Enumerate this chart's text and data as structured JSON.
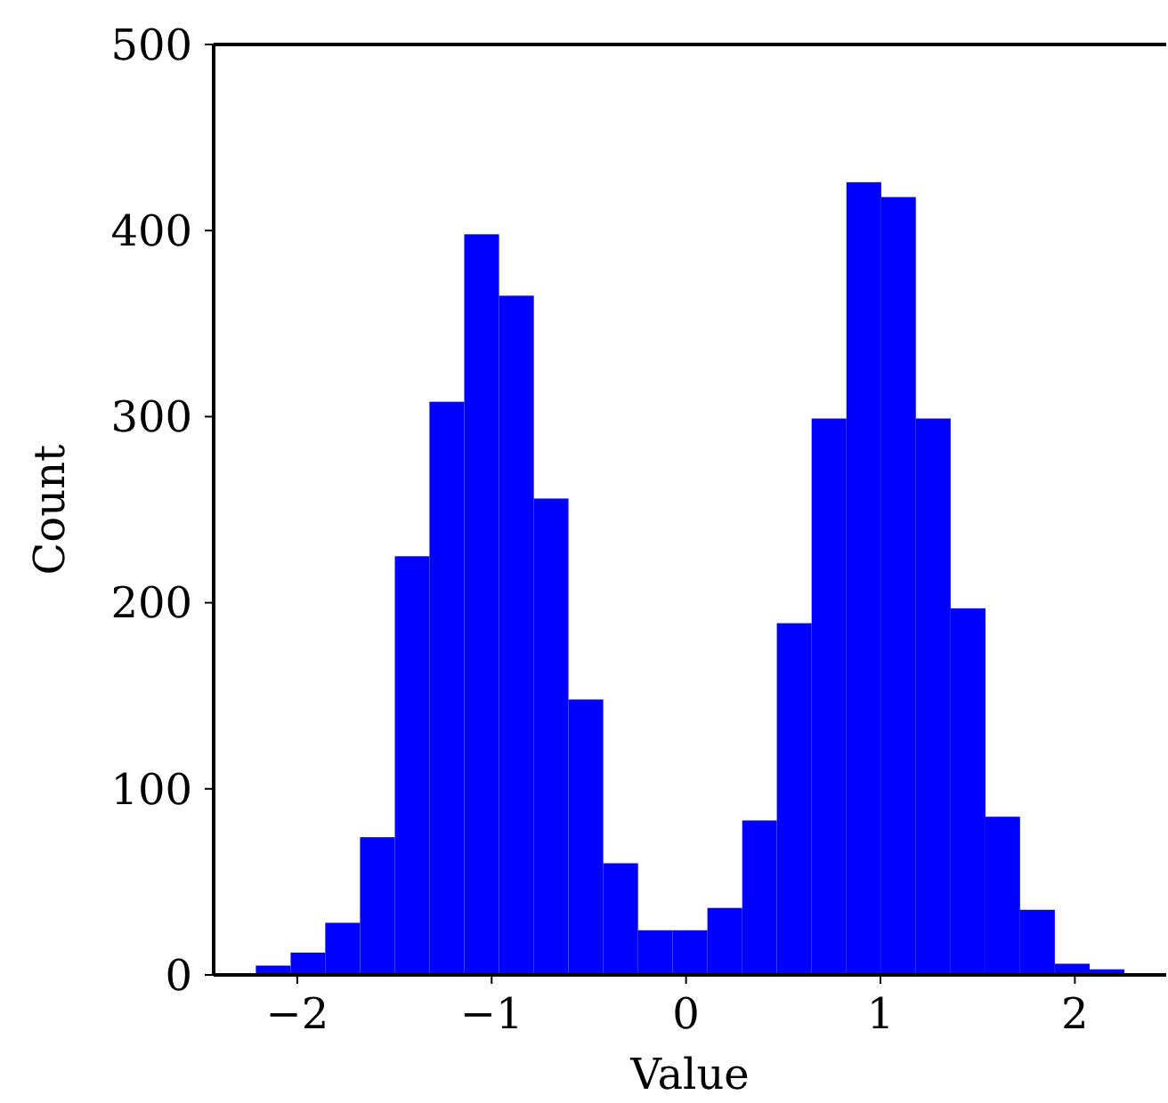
{
  "chart_data": {
    "type": "histogram",
    "xlabel": "Value",
    "ylabel": "Count",
    "color": "#0000ff",
    "bins": [
      -2.213,
      -2.034,
      -1.856,
      -1.677,
      -1.498,
      -1.32,
      -1.141,
      -0.962,
      -0.783,
      -0.605,
      -0.426,
      -0.247,
      -0.069,
      0.11,
      0.289,
      0.467,
      0.646,
      0.825,
      1.004,
      1.182,
      1.361,
      1.54,
      1.718,
      1.897,
      2.076,
      2.255
    ],
    "values": [
      5,
      12,
      28,
      74,
      225,
      308,
      398,
      365,
      256,
      148,
      60,
      24,
      24,
      36,
      83,
      189,
      299,
      426,
      418,
      299,
      197,
      85,
      35,
      6,
      3
    ],
    "xlim": [
      -2.43,
      2.47
    ],
    "xticks": [
      {
        "value": -2,
        "label": "−2"
      },
      {
        "value": -1,
        "label": "−1"
      },
      0,
      1,
      2
    ],
    "ylim": [
      0,
      500
    ],
    "yticks": [
      0,
      100,
      200,
      300,
      400,
      500
    ],
    "grid": false
  }
}
